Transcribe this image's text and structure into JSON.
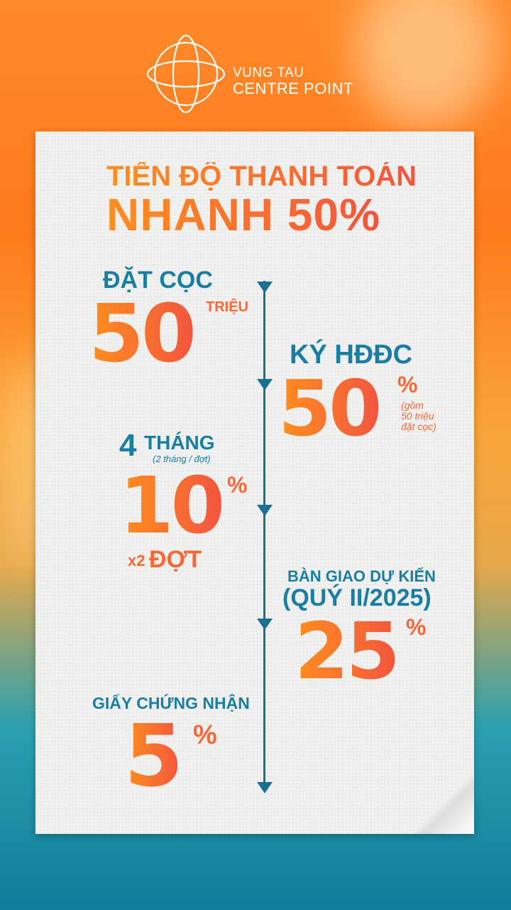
{
  "brand": {
    "line1": "VUNG TAU",
    "line2": "CENTRE POINT"
  },
  "title": {
    "line1": "TIẾN ĐỘ THANH TOÁN",
    "line2": "NHANH 50%"
  },
  "steps": [
    {
      "label": "ĐẶT CỌC",
      "value": "50",
      "unit": "TRIỆU"
    },
    {
      "label": "KÝ HĐĐC",
      "value": "50",
      "unit": "%",
      "note1": "(gồm",
      "note2": "50 triệu",
      "note3": "đặt cọc)"
    },
    {
      "label_num": "4",
      "label": "THÁNG",
      "sub": "(2 tháng / đợt)",
      "value": "10",
      "unit": "%",
      "extra_x": "x2",
      "extra": "ĐỢT"
    },
    {
      "label": "BÀN GIAO DỰ KIẾN",
      "label2": "(QUÝ II/2025)",
      "value": "25",
      "unit": "%"
    },
    {
      "label": "GIẤY CHỨNG NHẬN",
      "value": "5",
      "unit": "%"
    }
  ],
  "colors": {
    "teal": "#187ea3",
    "orange": "#f4683a",
    "orange_light": "#ff8f1e"
  }
}
